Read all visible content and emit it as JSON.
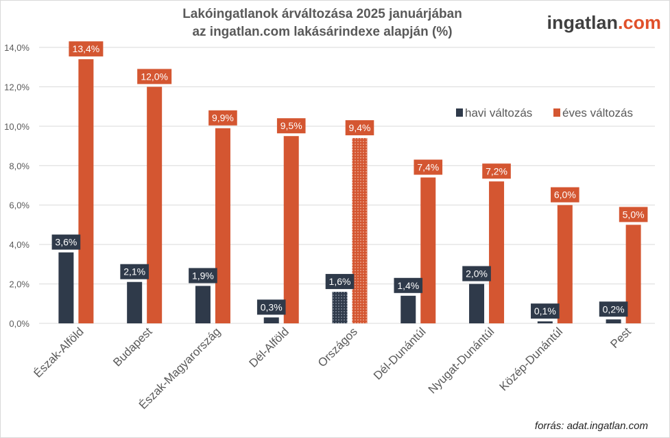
{
  "header": {
    "title_line1": "Lakóingatlanok árváltozása 2025 januárjában",
    "title_line2": "az ingatlan.com lakásárindexe alapján (%)"
  },
  "logo": {
    "text_main": "ingatlan",
    "text_domain": ".com"
  },
  "footer": {
    "source": "forrás: adat.ingatlan.com"
  },
  "colors": {
    "monthly": "#2f3a4a",
    "yearly": "#d45631",
    "grid": "#d9d9d9",
    "axis_text": "#595959"
  },
  "chart_data": {
    "type": "bar",
    "categories": [
      "Észak-Alföld",
      "Budapest",
      "Észak-Magyarország",
      "Dél-Alföld",
      "Országos",
      "Dél-Dunántúl",
      "Nyugat-Dunántúl",
      "Közép-Dunántúl",
      "Pest"
    ],
    "series": [
      {
        "name": "havi változás",
        "values": [
          3.6,
          2.1,
          1.9,
          0.3,
          1.6,
          1.4,
          2.0,
          0.1,
          0.2
        ],
        "labels": [
          "3,6%",
          "2,1%",
          "1,9%",
          "0,3%",
          "1,6%",
          "1,4%",
          "2,0%",
          "0,1%",
          "0,2%"
        ]
      },
      {
        "name": "éves változás",
        "values": [
          13.4,
          12.0,
          9.9,
          9.5,
          9.4,
          7.4,
          7.2,
          6.0,
          5.0
        ],
        "labels": [
          "13,4%",
          "12,0%",
          "9,9%",
          "9,5%",
          "9,4%",
          "7,4%",
          "7,2%",
          "6,0%",
          "5,0%"
        ]
      }
    ],
    "highlighted_category": "Országos",
    "ylim": [
      0,
      14
    ],
    "yticks": [
      0,
      2,
      4,
      6,
      8,
      10,
      12,
      14
    ],
    "ytick_labels": [
      "0,0%",
      "2,0%",
      "4,0%",
      "6,0%",
      "8,0%",
      "10,0%",
      "12,0%",
      "14,0%"
    ],
    "grid": true,
    "legend_position": "top-right"
  }
}
